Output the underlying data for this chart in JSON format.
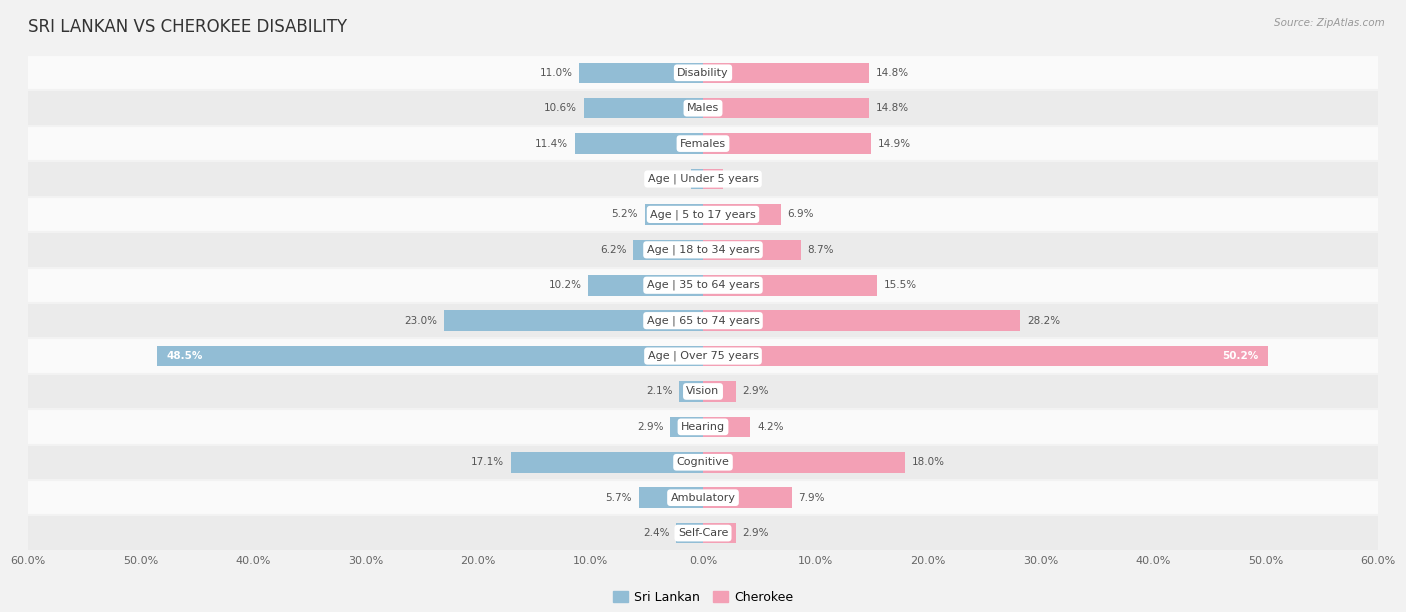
{
  "title": "SRI LANKAN VS CHEROKEE DISABILITY",
  "source": "Source: ZipAtlas.com",
  "categories": [
    "Disability",
    "Males",
    "Females",
    "Age | Under 5 years",
    "Age | 5 to 17 years",
    "Age | 18 to 34 years",
    "Age | 35 to 64 years",
    "Age | 65 to 74 years",
    "Age | Over 75 years",
    "Vision",
    "Hearing",
    "Cognitive",
    "Ambulatory",
    "Self-Care"
  ],
  "sri_lankan": [
    11.0,
    10.6,
    11.4,
    1.1,
    5.2,
    6.2,
    10.2,
    23.0,
    48.5,
    2.1,
    2.9,
    17.1,
    5.7,
    2.4
  ],
  "cherokee": [
    14.8,
    14.8,
    14.9,
    1.8,
    6.9,
    8.7,
    15.5,
    28.2,
    50.2,
    2.9,
    4.2,
    18.0,
    7.9,
    2.9
  ],
  "sri_lankan_color": "#92bdd5",
  "cherokee_color": "#f3a0b5",
  "sri_lankan_label": "Sri Lankan",
  "cherokee_label": "Cherokee",
  "axis_limit": 60.0,
  "background_color": "#f2f2f2",
  "row_light_color": "#fafafa",
  "row_dark_color": "#ebebeb",
  "bar_height": 0.58,
  "title_fontsize": 12,
  "label_fontsize": 8,
  "value_fontsize": 7.5,
  "legend_fontsize": 9,
  "tick_fontsize": 8
}
